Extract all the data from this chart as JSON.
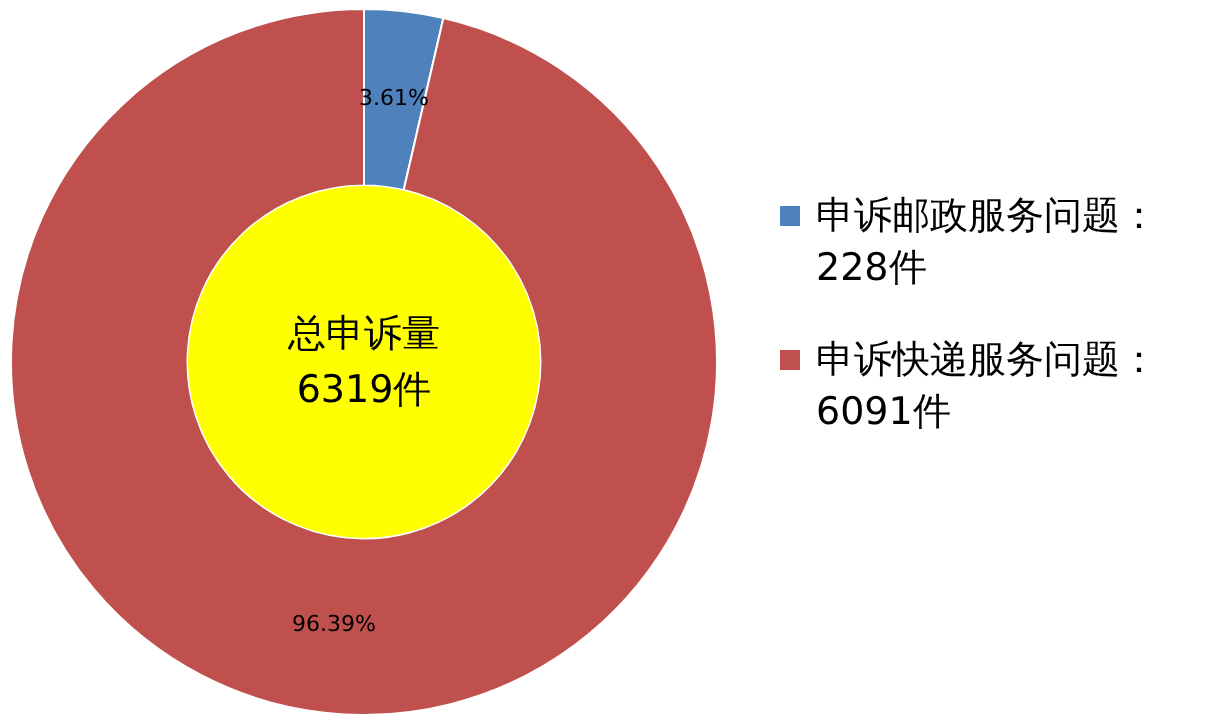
{
  "chart_data": {
    "type": "donut",
    "categories": [
      "申诉邮政服务问题：\n228件",
      "申诉快递服务问题：\n6091件"
    ],
    "values": [
      3.61,
      96.39
    ],
    "colors": [
      "#4f81bd",
      "#c0504d"
    ],
    "value_labels": [
      "3.61%",
      "96.39%"
    ],
    "annotations": [
      "总申诉量\n6319件"
    ],
    "legend": "right"
  }
}
